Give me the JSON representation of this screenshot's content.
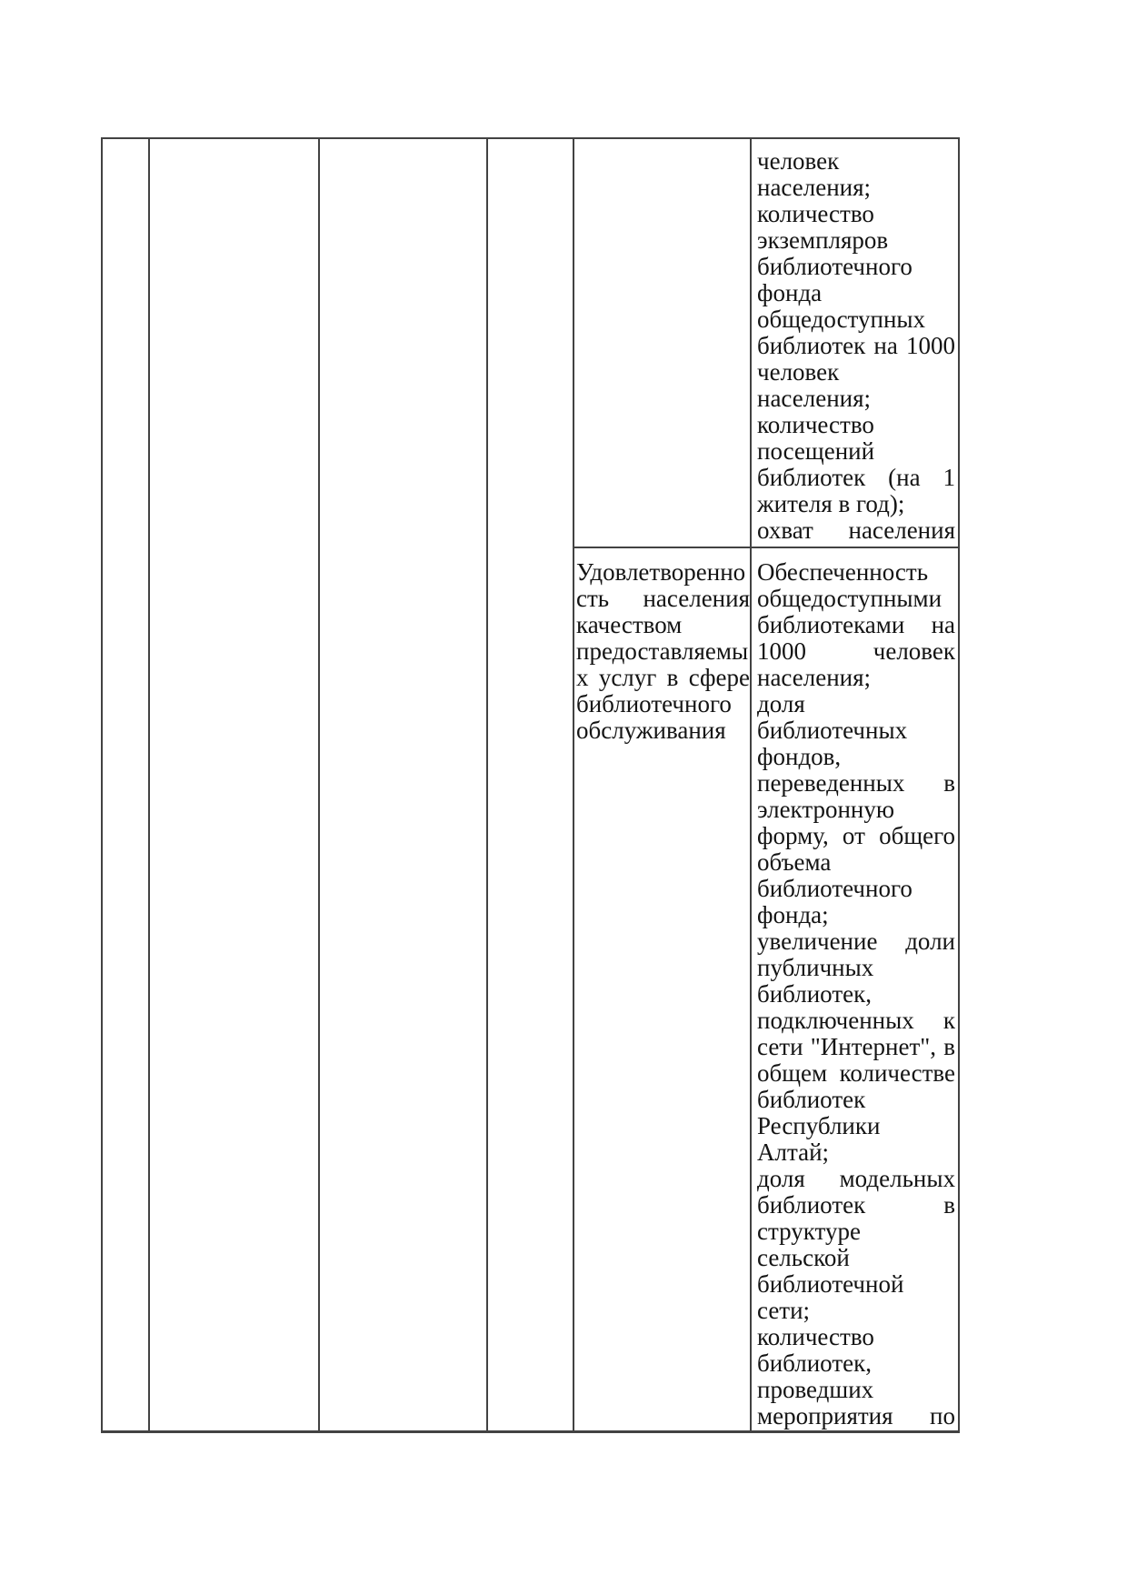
{
  "document": {
    "language": "ru",
    "kind": "table-page-fragment"
  },
  "colors": {
    "background": "#ffffff",
    "text": "#141414",
    "table_border": "#424242"
  },
  "table": {
    "columns_total": 6,
    "empty_columns": [
      "col1",
      "col2",
      "col3",
      "col4"
    ],
    "row1": {
      "col5_paragraphs": [],
      "col6_paragraphs": [
        "человек населения;",
        "количество экземпляров библиотечного фонда общедоступных библиотек на 1000 человек населения;",
        "количество посещений библиотек (на 1 жителя в год);",
        "охват населения библиотечным обслуживанием"
      ]
    },
    "row2": {
      "col5_paragraphs": [
        "Удовлетворенность населения качеством предоставляемых услуг в сфере библиотечного обслуживания"
      ],
      "col6_paragraphs": [
        "Обеспеченность общедоступными библиотеками на 1000 человек населения;",
        "доля библиотечных фондов, переведенных в электронную форму, от общего объема библиотечного фонда;",
        "увеличение доли публичных библиотек, подключенных к сети \"Интернет\", в общем количестве библиотек Республики Алтай;",
        "доля модельных библиотек в структуре сельской библиотечной сети;",
        "количество библиотек, проведших мероприятия по подключению общедоступных библиотек Российской"
      ]
    }
  }
}
